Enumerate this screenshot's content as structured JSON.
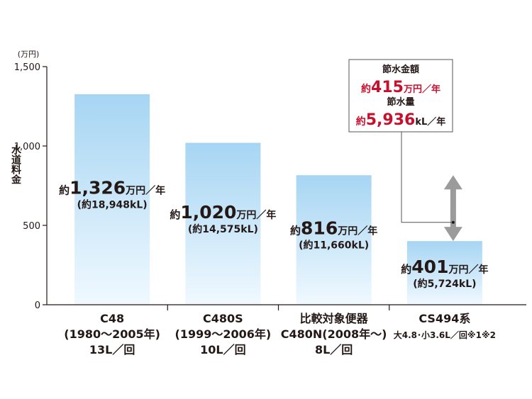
{
  "chart_data": {
    "type": "bar",
    "y_unit": "(万円)",
    "ylabel": "水道料金",
    "ylim": [
      0,
      1500
    ],
    "yticks": [
      {
        "value": 1500,
        "label": "1,500"
      },
      {
        "value": 1000,
        "label": "1,000"
      },
      {
        "value": 500,
        "label": "500"
      },
      {
        "value": 0,
        "label": "0"
      }
    ],
    "bars": [
      {
        "value": 1326,
        "label_prefix": "約",
        "label_value": "1,326",
        "label_unit": "万円／年",
        "label_sub": "(約18,948kL)",
        "category_lines": [
          "C48",
          "(1980～2005年)",
          "13L／回"
        ]
      },
      {
        "value": 1020,
        "label_prefix": "約",
        "label_value": "1,020",
        "label_unit": "万円／年",
        "label_sub": "(約14,575kL)",
        "category_lines": [
          "C480S",
          "(1999～2006年)",
          "10L／回"
        ]
      },
      {
        "value": 816,
        "label_prefix": "約",
        "label_value": "816",
        "label_unit": "万円／年",
        "label_sub": "(約11,660kL)",
        "category_lines": [
          "比較対象便器",
          "C480N(2008年～)",
          "8L／回"
        ]
      },
      {
        "value": 401,
        "label_prefix": "約",
        "label_value": "401",
        "label_unit": "万円／年",
        "label_sub": "(約5,724kL)",
        "category_lines": [
          "CS494系",
          "大4.8･小3.6L／回※1※2"
        ]
      }
    ],
    "callout": {
      "title1": "節水金額",
      "value1_prefix": "約",
      "value1": "415",
      "value1_unit": "万円／年",
      "title2": "節水量",
      "value2_prefix": "約",
      "value2": "5,936",
      "value2_unit": "kL／年"
    },
    "colors": {
      "bar_top": "#a6d5f3",
      "bar_bottom": "#f0f9ff",
      "axis": "#231815",
      "accent_red": "#c8102e",
      "arrow_gray": "#9b9b9b"
    }
  }
}
